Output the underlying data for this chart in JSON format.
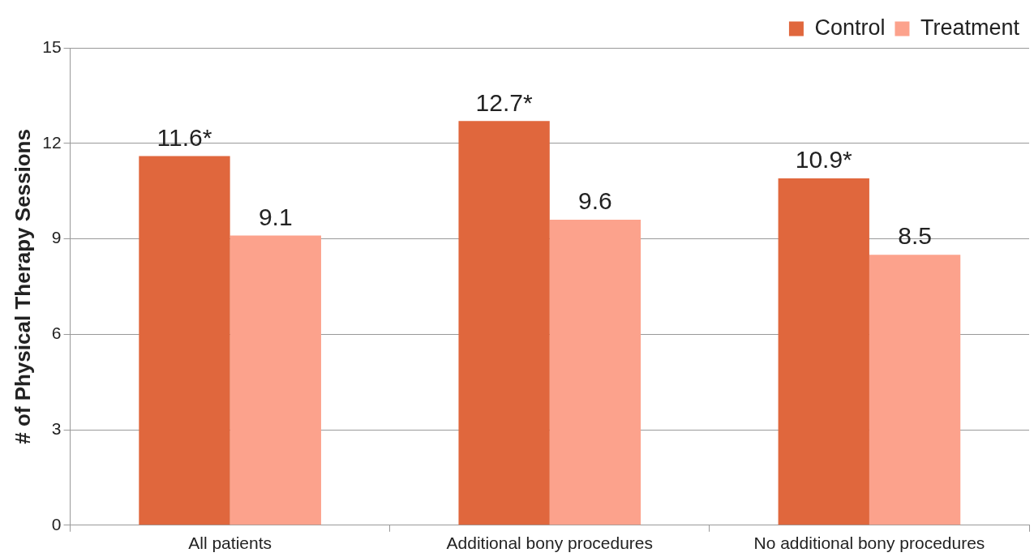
{
  "chart_data": {
    "type": "bar",
    "ylabel": "# of Physical Therapy Sessions",
    "categories": [
      "All patients",
      "Additional bony procedures",
      "No additional bony procedures"
    ],
    "series": [
      {
        "name": "Control",
        "color": "#e0673d",
        "values": [
          11.6,
          12.7,
          10.9
        ],
        "value_labels": [
          "11.6*",
          "12.7*",
          "10.9*"
        ]
      },
      {
        "name": "Treatment",
        "color": "#fca28c",
        "values": [
          9.1,
          9.6,
          8.5
        ],
        "value_labels": [
          "9.1",
          "9.6",
          "8.5"
        ]
      }
    ],
    "ylim": [
      0,
      15
    ],
    "yticks": [
      0,
      3,
      6,
      9,
      12,
      15
    ],
    "grid": "y",
    "legend": "top right"
  }
}
